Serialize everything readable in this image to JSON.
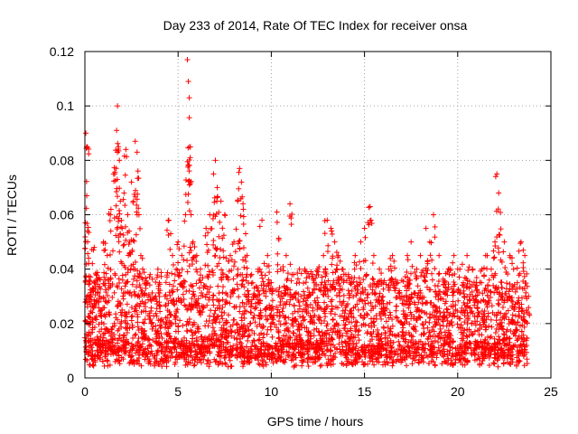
{
  "chart_data": {
    "type": "scatter",
    "title": "Day 233 of 2014, Rate Of TEC Index for receiver onsa",
    "xlabel": "GPS time / hours",
    "ylabel": "ROTI / TECUs",
    "xlim": [
      0,
      25
    ],
    "ylim": [
      0,
      0.12
    ],
    "xticks": [
      0,
      5,
      10,
      15,
      20,
      25
    ],
    "xtick_labels": [
      "0",
      "5",
      "10",
      "15",
      "20",
      "25"
    ],
    "yticks": [
      0,
      0.02,
      0.04,
      0.06,
      0.08,
      0.1,
      0.12
    ],
    "ytick_labels": [
      "0",
      "0.02",
      "0.04",
      "0.06",
      "0.08",
      "0.1",
      "0.12"
    ],
    "grid": true,
    "marker": "plus",
    "color": "#ff0000",
    "x_range_of_data": [
      0,
      23.8
    ],
    "series": [
      {
        "name": "ROTI",
        "x": [
          0.05,
          0.1,
          0.1,
          0.15,
          0.2,
          0.3,
          0.4,
          0.5,
          0.6,
          0.8,
          1.0,
          1.2,
          1.4,
          1.6,
          1.7,
          1.75,
          1.8,
          1.85,
          1.9,
          2.0,
          2.1,
          2.2,
          2.3,
          2.4,
          2.5,
          2.6,
          2.7,
          2.8,
          2.9,
          3.0,
          3.1,
          3.3,
          3.5,
          3.8,
          4.0,
          4.3,
          4.5,
          4.7,
          4.9,
          5.0,
          5.2,
          5.4,
          5.5,
          5.55,
          5.6,
          5.65,
          5.7,
          5.8,
          6.0,
          6.2,
          6.5,
          6.7,
          6.9,
          7.0,
          7.1,
          7.3,
          7.5,
          7.8,
          8.0,
          8.2,
          8.3,
          8.4,
          8.5,
          8.7,
          9.0,
          9.3,
          9.5,
          9.8,
          10.0,
          10.3,
          10.5,
          10.8,
          11.0,
          11.2,
          11.5,
          11.8,
          12.0,
          12.3,
          12.5,
          12.8,
          13.0,
          13.2,
          13.4,
          13.6,
          13.8,
          14.0,
          14.3,
          14.5,
          14.8,
          15.0,
          15.3,
          15.5,
          15.8,
          16.0,
          16.3,
          16.5,
          16.8,
          17.0,
          17.3,
          17.5,
          17.8,
          18.0,
          18.3,
          18.5,
          18.7,
          19.0,
          19.3,
          19.5,
          19.8,
          20.0,
          20.3,
          20.5,
          20.8,
          21.0,
          21.3,
          21.5,
          21.8,
          22.0,
          22.1,
          22.2,
          22.5,
          22.8,
          23.0,
          23.2,
          23.4,
          23.6,
          23.8
        ],
        "y": [
          0.09,
          0.085,
          0.067,
          0.05,
          0.044,
          0.03,
          0.042,
          0.048,
          0.038,
          0.03,
          0.05,
          0.045,
          0.062,
          0.075,
          0.091,
          0.1,
          0.085,
          0.08,
          0.065,
          0.055,
          0.068,
          0.084,
          0.06,
          0.05,
          0.072,
          0.065,
          0.087,
          0.083,
          0.06,
          0.045,
          0.04,
          0.035,
          0.038,
          0.03,
          0.035,
          0.03,
          0.058,
          0.045,
          0.04,
          0.05,
          0.045,
          0.06,
          0.117,
          0.109,
          0.103,
          0.081,
          0.06,
          0.05,
          0.045,
          0.04,
          0.055,
          0.06,
          0.075,
          0.08,
          0.07,
          0.065,
          0.06,
          0.045,
          0.05,
          0.065,
          0.077,
          0.072,
          0.062,
          0.045,
          0.035,
          0.04,
          0.058,
          0.045,
          0.035,
          0.061,
          0.04,
          0.045,
          0.064,
          0.03,
          0.035,
          0.04,
          0.03,
          0.035,
          0.04,
          0.045,
          0.058,
          0.055,
          0.05,
          0.045,
          0.04,
          0.038,
          0.035,
          0.045,
          0.05,
          0.055,
          0.063,
          0.045,
          0.04,
          0.035,
          0.04,
          0.045,
          0.035,
          0.03,
          0.045,
          0.05,
          0.04,
          0.045,
          0.055,
          0.05,
          0.06,
          0.045,
          0.035,
          0.04,
          0.045,
          0.04,
          0.035,
          0.045,
          0.04,
          0.035,
          0.04,
          0.045,
          0.04,
          0.05,
          0.075,
          0.068,
          0.05,
          0.045,
          0.04,
          0.035,
          0.05,
          0.045,
          0.03
        ]
      }
    ]
  }
}
